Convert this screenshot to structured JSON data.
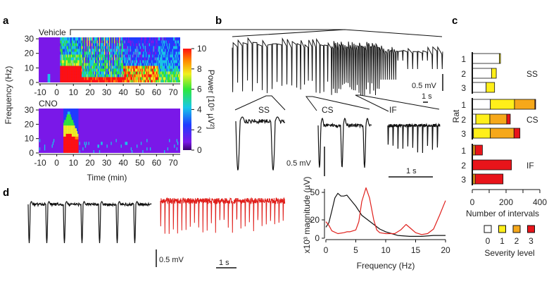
{
  "panel_labels": {
    "a": "a",
    "b": "b",
    "c": "c",
    "d": "d"
  },
  "panel_a": {
    "top_label": "Vehicle",
    "bottom_label": "CNO",
    "ylabel": "Frequency (Hz)",
    "xlabel": "Time (min)",
    "yticks": [
      "0",
      "10",
      "20",
      "30"
    ],
    "xticks": [
      "-10",
      "0",
      "10",
      "20",
      "30",
      "40",
      "50",
      "60",
      "70"
    ],
    "colorbar_label": "Power [10⁵ µV²]",
    "colorbar_ticks": [
      "0",
      "2",
      "4",
      "6",
      "8",
      "10"
    ],
    "colormap": [
      "#3a0070",
      "#7a18e8",
      "#1f3cff",
      "#17c8e8",
      "#2ee83a",
      "#f0f020",
      "#ff8a00",
      "#ff1010"
    ]
  },
  "panel_b": {
    "overview_scale_v": "0.5 mV",
    "overview_scale_t": "1 s",
    "segments": [
      "SS",
      "CS",
      "IF"
    ],
    "scale_v": "0.5 mV",
    "scale_t": "1 s"
  },
  "panel_d": {
    "scale_v": "0.5 mV",
    "scale_t": "1 s",
    "trace_colors": {
      "black": "#111111",
      "red": "#e0201c"
    }
  },
  "chart_data": [
    {
      "type": "bar",
      "stacked": true,
      "orientation": "horizontal",
      "ylabel": "Rat",
      "xlabel": "Number of intervals",
      "xlim": [
        0,
        400
      ],
      "xticks": [
        "0",
        "200",
        "400"
      ],
      "legend_title": "Severity level",
      "legend": [
        {
          "label": "0",
          "color": "#ffffff"
        },
        {
          "label": "1",
          "color": "#ffef1a"
        },
        {
          "label": "2",
          "color": "#f6a81a"
        },
        {
          "label": "3",
          "color": "#e8141a"
        }
      ],
      "groups": [
        {
          "name": "SS",
          "rats": [
            {
              "rat": "1",
              "values": [
                160,
                7,
                0,
                0
              ]
            },
            {
              "rat": "2",
              "values": [
                114,
                28,
                0,
                0
              ]
            },
            {
              "rat": "3",
              "values": [
                82,
                50,
                0,
                0
              ]
            }
          ]
        },
        {
          "name": "CS",
          "rats": [
            {
              "rat": "1",
              "values": [
                107,
                143,
                121,
                4
              ]
            },
            {
              "rat": "2",
              "values": [
                21,
                83,
                100,
                21
              ]
            },
            {
              "rat": "3",
              "values": [
                7,
                100,
                140,
                35
              ]
            }
          ]
        },
        {
          "name": "IF",
          "rats": [
            {
              "rat": "1",
              "values": [
                0,
                4,
                13,
                43
              ]
            },
            {
              "rat": "2",
              "values": [
                0,
                0,
                0,
                232
              ]
            },
            {
              "rat": "3",
              "values": [
                0,
                4,
                13,
                165
              ]
            }
          ]
        }
      ]
    },
    {
      "type": "line",
      "xlabel": "Frequency (Hz)",
      "ylabel": "x10³ magnitude (µV)",
      "xlim": [
        0,
        20
      ],
      "ylim": [
        0,
        50
      ],
      "xticks": [
        "0",
        "5",
        "10",
        "15",
        "20"
      ],
      "yticks": [
        "0",
        "20",
        "50"
      ],
      "series": [
        {
          "color": "#111111",
          "x": [
            0,
            0.5,
            1,
            1.5,
            2,
            2.5,
            3,
            3.5,
            4,
            5,
            6,
            7,
            8,
            9,
            10,
            11,
            12,
            14,
            16,
            18,
            20
          ],
          "y": [
            12,
            17,
            30,
            44,
            49,
            46,
            46,
            47,
            43,
            35,
            25,
            20,
            15,
            10,
            7,
            5,
            3,
            2,
            2,
            3,
            3
          ]
        },
        {
          "color": "#e0201c",
          "x": [
            0,
            0.5,
            1,
            2,
            3,
            3.5,
            4,
            5,
            5.5,
            6,
            6.7,
            7.3,
            8,
            8.5,
            9,
            10,
            11.5,
            12.5,
            13.4,
            14.3,
            15,
            16,
            17,
            18,
            19,
            20
          ],
          "y": [
            18,
            14,
            8,
            5,
            6,
            7,
            7,
            9,
            18,
            40,
            55,
            44,
            20,
            9,
            6,
            5,
            5,
            9,
            15,
            10,
            6,
            4,
            5,
            10,
            25,
            41
          ]
        }
      ]
    }
  ]
}
